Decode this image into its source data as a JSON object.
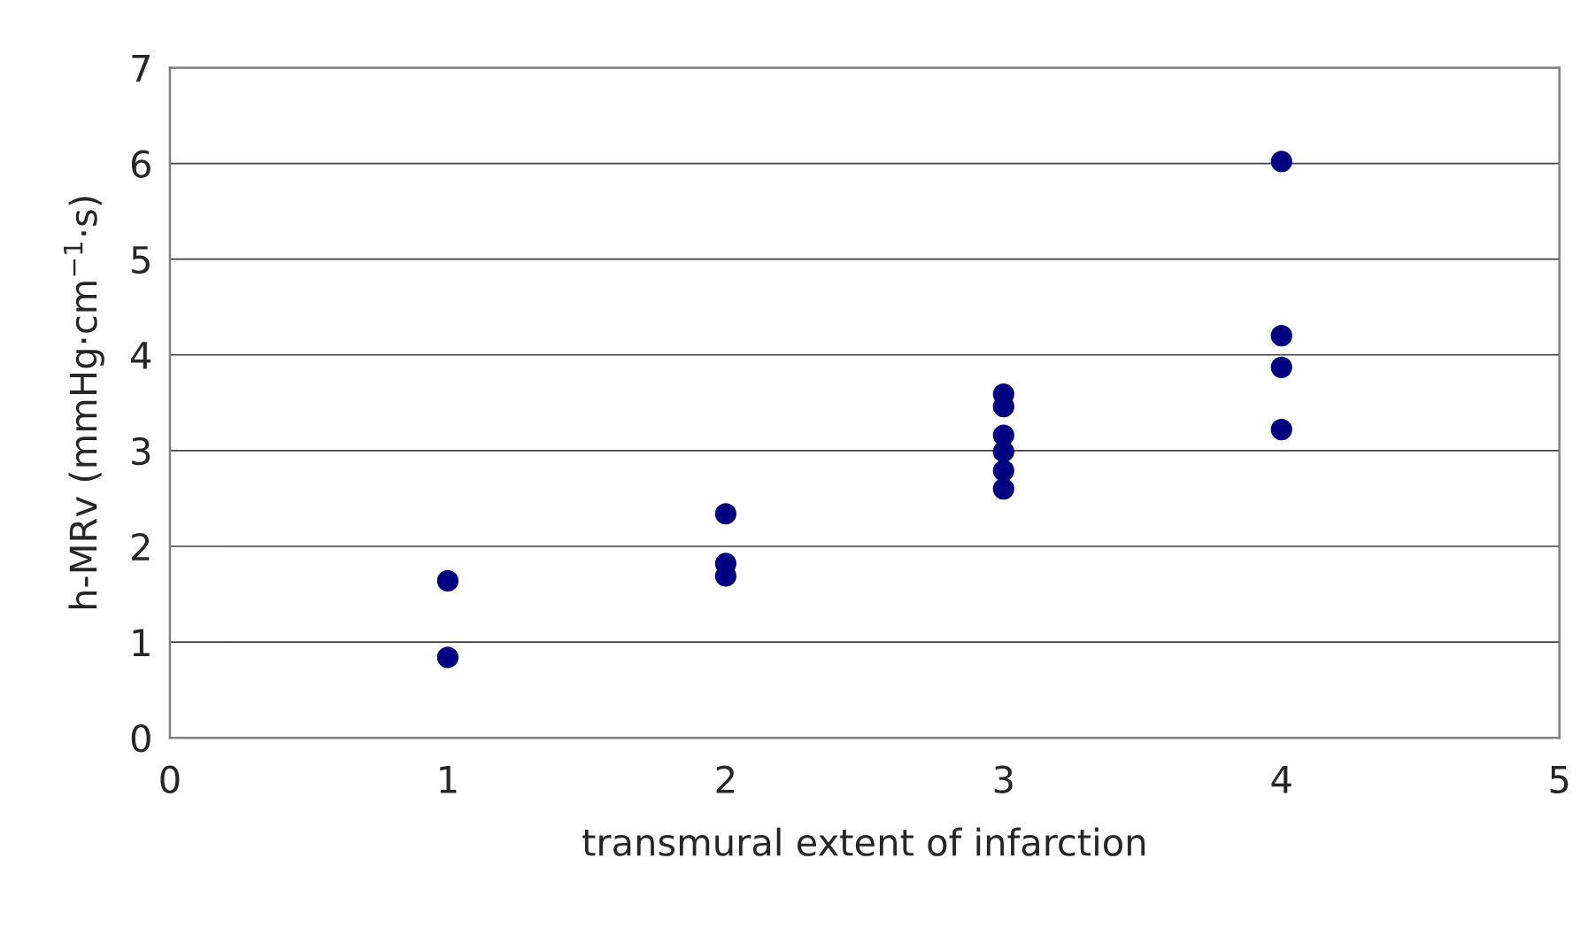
{
  "chart_data": {
    "type": "scatter",
    "xlabel": "transmural extent of infarction",
    "ylabel": "h-MRv (mmHg·cm$^{−1}$·s)",
    "x": [
      1,
      1,
      2,
      2,
      2,
      3,
      3,
      3,
      3,
      3,
      3,
      4,
      4,
      4,
      4
    ],
    "series": [
      {
        "color": "#000080",
        "values": [
          1.64,
          0.84,
          2.34,
          1.82,
          1.69,
          3.59,
          3.46,
          3.16,
          2.99,
          2.79,
          2.6,
          6.02,
          4.2,
          3.87,
          3.22
        ]
      }
    ],
    "xlim": [
      0,
      5
    ],
    "xticks": [
      0,
      1,
      2,
      3,
      4,
      5
    ],
    "ylim": [
      0,
      7
    ],
    "yticks": [
      0,
      1,
      2,
      3,
      4,
      5,
      6,
      7
    ],
    "grid": "y",
    "marker": "circle"
  }
}
